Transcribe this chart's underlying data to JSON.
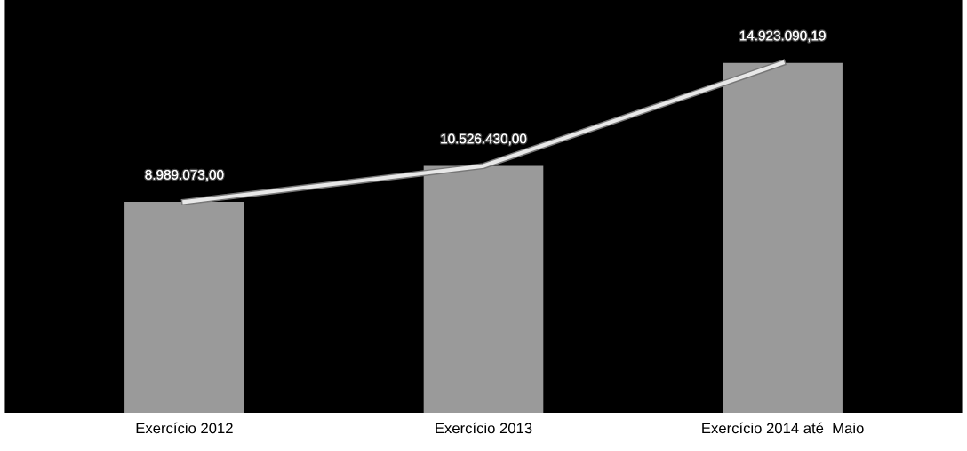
{
  "chart_data": {
    "type": "bar",
    "categories": [
      "Exercício 2012",
      "Exercício 2013",
      "Exercício 2014 até  Maio"
    ],
    "series": [
      {
        "color": "#9a9a9a",
        "values": [
          8989073.0,
          10526430.0,
          14923090.19
        ],
        "value_labels": [
          "8.989.073,00",
          "10.526.430,00",
          "14.923.090,19"
        ]
      },
      {
        "type": "line",
        "color": "#e8e8e8",
        "values": [
          8989073.0,
          10526430.0,
          14923090.19
        ]
      }
    ],
    "grid": false,
    "legend": false,
    "marker": "none",
    "line_style": "solid"
  }
}
